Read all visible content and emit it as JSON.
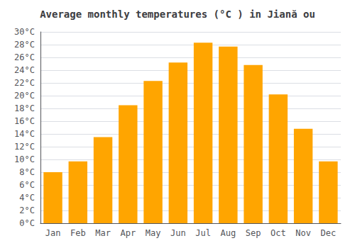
{
  "chart_data": {
    "type": "bar",
    "title": "Average monthly temperatures (°C ) in Jiană ou",
    "categories": [
      "Jan",
      "Feb",
      "Mar",
      "Apr",
      "May",
      "Jun",
      "Jul",
      "Aug",
      "Sep",
      "Oct",
      "Nov",
      "Dec"
    ],
    "values": [
      8.0,
      9.7,
      13.5,
      18.5,
      22.3,
      25.2,
      28.3,
      27.7,
      24.8,
      20.2,
      14.8,
      9.7
    ],
    "color": "#FFA500",
    "ylim": [
      0,
      30
    ],
    "yticks": [
      {
        "value": 0,
        "label": "0°C"
      },
      {
        "value": 2,
        "label": "2°C"
      },
      {
        "value": 4,
        "label": "4°C"
      },
      {
        "value": 6,
        "label": "6°C"
      },
      {
        "value": 8,
        "label": "8°C"
      },
      {
        "value": 10,
        "label": "10°C"
      },
      {
        "value": 12,
        "label": "12°C"
      },
      {
        "value": 14,
        "label": "14°C"
      },
      {
        "value": 16,
        "label": "16°C"
      },
      {
        "value": 18,
        "label": "18°C"
      },
      {
        "value": 20,
        "label": "20°C"
      },
      {
        "value": 22,
        "label": "22°C"
      },
      {
        "value": 24,
        "label": "24°C"
      },
      {
        "value": 26,
        "label": "26°C"
      },
      {
        "value": 28,
        "label": "28°C"
      },
      {
        "value": 30,
        "label": "30°C"
      }
    ],
    "grid": true
  }
}
